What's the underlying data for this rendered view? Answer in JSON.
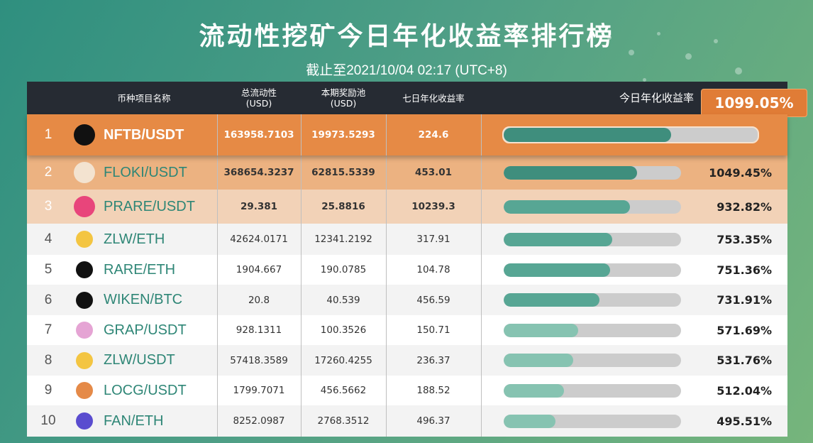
{
  "header": {
    "title": "流动性挖矿今日年化收益率排行榜",
    "subtitle": "截止至2021/10/04 02:17 (UTC+8)"
  },
  "table": {
    "columns": {
      "name": "币种项目名称",
      "liquidity": "总流动性",
      "liquidity_unit": "(USD)",
      "reward": "本期奖励池",
      "reward_unit": "(USD)",
      "apy7": "七日年化收益率",
      "apy_today": "今日年化收益率"
    },
    "top_callout": "1099.05%",
    "rows": [
      {
        "rank": "1",
        "pair": "NFTB/USDT",
        "liquidity": "163958.7103",
        "reward": "19973.5293",
        "apy7": "224.6",
        "pct": "",
        "fill": 0.66,
        "icon": "nftb-icon",
        "icon_color": "#111111"
      },
      {
        "rank": "2",
        "pair": "FLOKI/USDT",
        "liquidity": "368654.3237",
        "reward": "62815.5339",
        "apy7": "453.01",
        "pct": "1049.45%",
        "fill": 0.75,
        "icon": "floki-icon",
        "icon_color": "#f3e3d0"
      },
      {
        "rank": "3",
        "pair": "PRARE/USDT",
        "liquidity": "29.381",
        "reward": "25.8816",
        "apy7": "10239.3",
        "pct": "932.82%",
        "fill": 0.71,
        "icon": "prare-icon",
        "icon_color": "#e8457b"
      },
      {
        "rank": "4",
        "pair": "ZLW/ETH",
        "liquidity": "42624.0171",
        "reward": "12341.2192",
        "apy7": "317.91",
        "pct": "753.35%",
        "fill": 0.61,
        "icon": "zlw-icon",
        "icon_color": "#f3c542"
      },
      {
        "rank": "5",
        "pair": "RARE/ETH",
        "liquidity": "1904.667",
        "reward": "190.0785",
        "apy7": "104.78",
        "pct": "751.36%",
        "fill": 0.6,
        "icon": "rare-icon",
        "icon_color": "#111111"
      },
      {
        "rank": "6",
        "pair": "WIKEN/BTC",
        "liquidity": "20.8",
        "reward": "40.539",
        "apy7": "456.59",
        "pct": "731.91%",
        "fill": 0.54,
        "icon": "wiken-icon",
        "icon_color": "#111111"
      },
      {
        "rank": "7",
        "pair": "GRAP/USDT",
        "liquidity": "928.1311",
        "reward": "100.3526",
        "apy7": "150.71",
        "pct": "571.69%",
        "fill": 0.42,
        "icon": "grap-icon",
        "icon_color": "#e5a4d4"
      },
      {
        "rank": "8",
        "pair": "ZLW/USDT",
        "liquidity": "57418.3589",
        "reward": "17260.4255",
        "apy7": "236.37",
        "pct": "531.76%",
        "fill": 0.39,
        "icon": "zlw-icon",
        "icon_color": "#f3c542"
      },
      {
        "rank": "9",
        "pair": "LOCG/USDT",
        "liquidity": "1799.7071",
        "reward": "456.5662",
        "apy7": "188.52",
        "pct": "512.04%",
        "fill": 0.34,
        "icon": "locg-icon",
        "icon_color": "#e58a48"
      },
      {
        "rank": "10",
        "pair": "FAN/ETH",
        "liquidity": "8252.0987",
        "reward": "2768.3512",
        "apy7": "496.37",
        "pct": "495.51%",
        "fill": 0.29,
        "icon": "fan-icon",
        "icon_color": "#5a4ccf"
      }
    ]
  },
  "colors": {
    "row1_bg": "#e68a45",
    "row2_bg": "#ecb281",
    "row3_bg": "#f2d2b7",
    "bar_dark": "#3f8e7d",
    "bar_mid": "#57a694",
    "bar_light": "#86c3b1",
    "bar_track": "#cccccc"
  }
}
